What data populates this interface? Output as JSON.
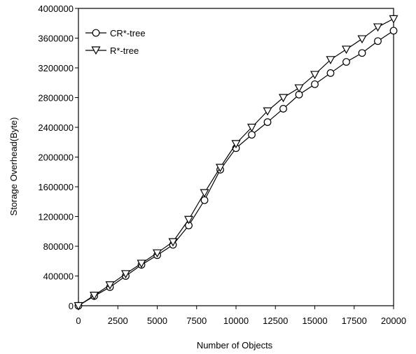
{
  "chart_data": {
    "type": "line",
    "title": "",
    "xlabel": "Number of Objects",
    "ylabel": "Storage Overhead(Byte)",
    "xlim": [
      0,
      20000
    ],
    "ylim": [
      0,
      4000000
    ],
    "x_ticks": [
      0,
      2500,
      5000,
      7500,
      10000,
      12500,
      15000,
      17500,
      20000
    ],
    "x_tick_labels": [
      "0",
      "2500",
      "5000",
      "7500",
      "10000",
      "12500",
      "15000",
      "17500",
      "20000"
    ],
    "y_ticks": [
      0,
      400000,
      800000,
      1200000,
      1600000,
      2000000,
      2400000,
      2800000,
      3200000,
      3600000,
      4000000
    ],
    "y_tick_labels": [
      "0",
      "400000",
      "800000",
      "1200000",
      "1600000",
      "2000000",
      "2400000",
      "2800000",
      "3200000",
      "3600000",
      "4000000"
    ],
    "grid": false,
    "legend_position": "top-left",
    "x": [
      0,
      1000,
      2000,
      3000,
      4000,
      5000,
      6000,
      7000,
      8000,
      9000,
      10000,
      11000,
      12000,
      13000,
      14000,
      15000,
      16000,
      17000,
      18000,
      19000,
      20000
    ],
    "series": [
      {
        "name": "CR*-tree",
        "marker": "circle",
        "color": "#000000",
        "values": [
          0,
          130000,
          250000,
          400000,
          550000,
          680000,
          820000,
          1080000,
          1420000,
          1830000,
          2120000,
          2300000,
          2470000,
          2650000,
          2840000,
          2980000,
          3130000,
          3280000,
          3400000,
          3560000,
          3700000
        ]
      },
      {
        "name": "R*-tree",
        "marker": "triangle-down",
        "color": "#000000",
        "values": [
          0,
          140000,
          280000,
          430000,
          570000,
          710000,
          860000,
          1160000,
          1520000,
          1860000,
          2180000,
          2400000,
          2620000,
          2800000,
          2930000,
          3110000,
          3310000,
          3450000,
          3590000,
          3750000,
          3860000
        ]
      }
    ]
  }
}
